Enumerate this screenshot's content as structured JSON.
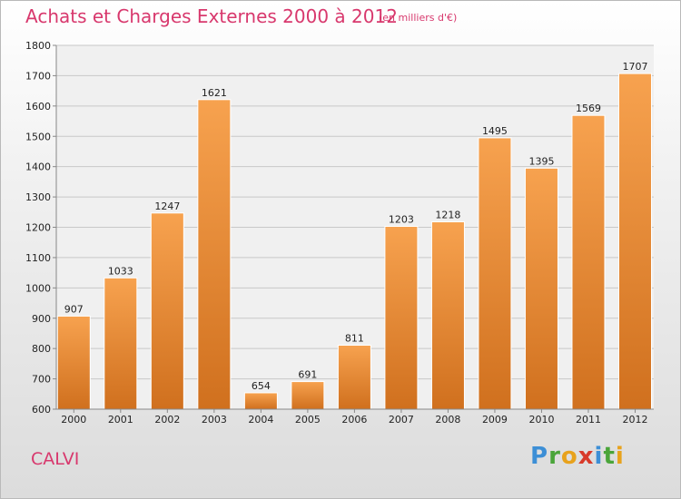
{
  "header": {
    "title": "Achats et Charges Externes 2000 à 2012",
    "subtitle": "(en milliers d'€)"
  },
  "location": "CALVI",
  "logo": {
    "letters": [
      "P",
      "r",
      "o",
      "x",
      "i",
      "t",
      "i"
    ],
    "colors": [
      "#3d8fd6",
      "#4aa53a",
      "#e8a21c",
      "#d83a2a",
      "#3d8fd6",
      "#4aa53a",
      "#e8a21c"
    ]
  },
  "colors": {
    "bar_top": "#f7a24f",
    "bar_bottom": "#d0701e",
    "grid": "#c8c8c8",
    "axis": "#888888"
  },
  "chart_data": {
    "type": "bar",
    "title": "Achats et Charges Externes 2000 à 2012",
    "subtitle": "(en milliers d'€)",
    "categories": [
      "2000",
      "2001",
      "2002",
      "2003",
      "2004",
      "2005",
      "2006",
      "2007",
      "2008",
      "2009",
      "2010",
      "2011",
      "2012"
    ],
    "values": [
      907,
      1033,
      1247,
      1621,
      654,
      691,
      811,
      1203,
      1218,
      1495,
      1395,
      1569,
      1707
    ],
    "value_labels": [
      "907",
      "1033",
      "1247",
      "1621",
      "654",
      "691",
      "811",
      "1203",
      "1218",
      "1495",
      "1395",
      "1569",
      "1707"
    ],
    "ylim": [
      600,
      1800
    ],
    "yticks": [
      600,
      700,
      800,
      900,
      1000,
      1100,
      1200,
      1300,
      1400,
      1500,
      1600,
      1700,
      1800
    ],
    "ytick_labels": [
      "600",
      "700",
      "800",
      "900",
      "1000",
      "1100",
      "1200",
      "1300",
      "1400",
      "1500",
      "1600",
      "1700",
      "1800"
    ],
    "xlabel": "",
    "ylabel": "",
    "grid": true,
    "legend": "none"
  }
}
